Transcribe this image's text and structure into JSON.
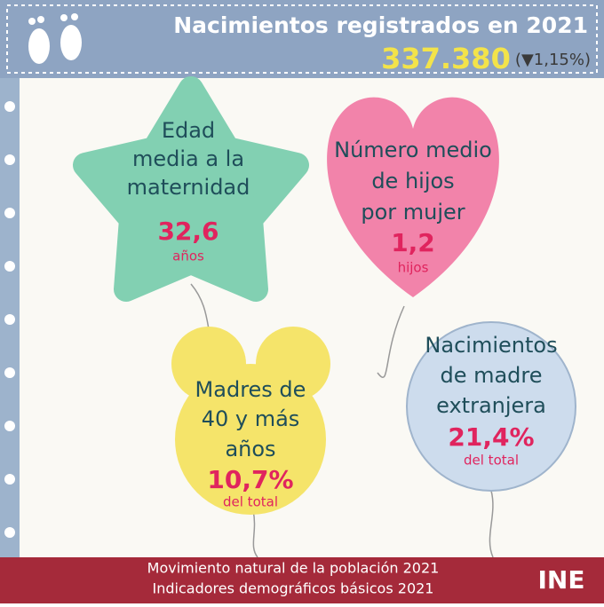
{
  "header": {
    "title": "Nacimientos registrados en 2021",
    "total": "337.380",
    "change": "(▼1,15%)"
  },
  "balloons": [
    {
      "lines": [
        "Edad",
        "media a la",
        "maternidad"
      ],
      "value": "32,6",
      "unit": "años"
    },
    {
      "lines": [
        "Número medio",
        "de hijos",
        "por mujer"
      ],
      "value": "1,2",
      "unit": "hijos"
    },
    {
      "lines": [
        "Madres de",
        "40  y más",
        "años"
      ],
      "value": "10,7%",
      "unit": "del total"
    },
    {
      "lines": [
        "Nacimientos",
        "de madre",
        "extranjera"
      ],
      "value": "21,4%",
      "unit": "del total"
    }
  ],
  "footer": {
    "lines": [
      "Movimiento natural de la población 2021",
      "Indicadores demográficos básicos 2021"
    ],
    "logo": "INE"
  }
}
